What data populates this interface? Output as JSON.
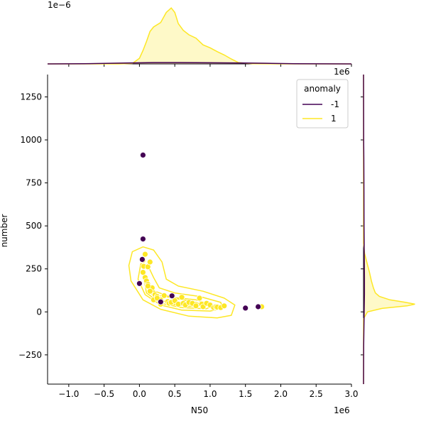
{
  "chart_data": {
    "type": "scatter",
    "subtype": "jointplot with kde contours and marginal kde",
    "xlabel": "N50",
    "ylabel": "number",
    "x_offset_label": "1e6",
    "top_marginal_offset_label": "1e−6",
    "right_marginal_offset_label": "1e6",
    "xlim": [
      -1.3,
      3.0
    ],
    "ylim": [
      -420,
      1380
    ],
    "x_scale": 1000000,
    "x_ticks": [
      -1.0,
      -0.5,
      0.0,
      0.5,
      1.0,
      1.5,
      2.0,
      2.5,
      3.0
    ],
    "x_tick_labels": [
      "−1.0",
      "−0.5",
      "0.0",
      "0.5",
      "1.0",
      "1.5",
      "2.0",
      "2.5",
      "3.0"
    ],
    "y_ticks": [
      -250,
      0,
      250,
      500,
      750,
      1000,
      1250
    ],
    "y_tick_labels": [
      "−250",
      "0",
      "250",
      "500",
      "750",
      "1000",
      "1250"
    ],
    "grid": false,
    "legend": {
      "title": "anomaly",
      "placement": "top-right",
      "entries": [
        {
          "label": "-1",
          "color": "#440154"
        },
        {
          "label": "1",
          "color": "#fde725"
        }
      ]
    },
    "series": [
      {
        "name": "-1",
        "color": "#440154",
        "x": [
          0.05,
          0.05,
          0.04,
          0.0,
          0.3,
          0.46,
          1.5,
          1.68
        ],
        "y": [
          912,
          424,
          305,
          165,
          58,
          93,
          22,
          30
        ]
      },
      {
        "name": "1",
        "color": "#fde725",
        "x": [
          0.08,
          0.05,
          0.06,
          0.12,
          0.15,
          0.05,
          0.08,
          0.1,
          0.12,
          0.18,
          0.2,
          0.22,
          0.25,
          0.28,
          0.3,
          0.35,
          0.4,
          0.42,
          0.45,
          0.5,
          0.55,
          0.6,
          0.62,
          0.65,
          0.7,
          0.75,
          0.8,
          0.85,
          0.88,
          0.9,
          0.95,
          1.0,
          1.05,
          1.08,
          1.1,
          1.15,
          1.2,
          0.2,
          0.25,
          0.3,
          0.12,
          0.15,
          1.73
        ],
        "y": [
          335,
          300,
          265,
          262,
          290,
          230,
          200,
          180,
          160,
          140,
          110,
          100,
          90,
          75,
          70,
          95,
          60,
          50,
          55,
          65,
          45,
          85,
          50,
          40,
          55,
          50,
          35,
          80,
          45,
          30,
          50,
          40,
          25,
          30,
          28,
          25,
          35,
          70,
          80,
          45,
          150,
          120,
          30
        ]
      }
    ],
    "contours": [
      {
        "series": "1",
        "level": 1,
        "points": [
          [
            -0.1,
            350
          ],
          [
            0.05,
            378
          ],
          [
            0.2,
            360
          ],
          [
            0.32,
            290
          ],
          [
            0.38,
            190
          ],
          [
            0.55,
            150
          ],
          [
            0.9,
            120
          ],
          [
            1.2,
            80
          ],
          [
            1.35,
            40
          ],
          [
            1.3,
            -20
          ],
          [
            1.1,
            -35
          ],
          [
            0.7,
            -25
          ],
          [
            0.3,
            15
          ],
          [
            0.05,
            70
          ],
          [
            -0.12,
            180
          ],
          [
            -0.15,
            270
          ],
          [
            -0.1,
            350
          ]
        ]
      },
      {
        "series": "1",
        "level": 2,
        "points": [
          [
            0.02,
            280
          ],
          [
            0.12,
            270
          ],
          [
            0.2,
            200
          ],
          [
            0.28,
            140
          ],
          [
            0.5,
            110
          ],
          [
            0.85,
            90
          ],
          [
            1.15,
            55
          ],
          [
            1.18,
            20
          ],
          [
            1.0,
            5
          ],
          [
            0.6,
            10
          ],
          [
            0.3,
            40
          ],
          [
            0.08,
            100
          ],
          [
            -0.02,
            190
          ],
          [
            0.02,
            280
          ]
        ]
      },
      {
        "series": "1",
        "level": 3,
        "points": [
          [
            0.06,
            200
          ],
          [
            0.12,
            170
          ],
          [
            0.22,
            120
          ],
          [
            0.45,
            85
          ],
          [
            0.8,
            70
          ],
          [
            1.05,
            40
          ],
          [
            0.95,
            18
          ],
          [
            0.6,
            25
          ],
          [
            0.3,
            50
          ],
          [
            0.1,
            110
          ],
          [
            0.06,
            200
          ]
        ]
      },
      {
        "series": "1",
        "level": 4,
        "points": [
          [
            0.3,
            95
          ],
          [
            0.55,
            75
          ],
          [
            0.8,
            55
          ],
          [
            0.9,
            38
          ],
          [
            0.7,
            32
          ],
          [
            0.45,
            45
          ],
          [
            0.3,
            70
          ],
          [
            0.3,
            95
          ]
        ]
      },
      {
        "series": "1",
        "level": 5,
        "points": [
          [
            0.42,
            65
          ],
          [
            0.6,
            55
          ],
          [
            0.72,
            45
          ],
          [
            0.6,
            40
          ],
          [
            0.45,
            48
          ],
          [
            0.42,
            65
          ]
        ]
      }
    ],
    "top_marginal": {
      "series": [
        {
          "name": "1",
          "color": "#fde725",
          "x": [
            -1.3,
            -0.3,
            -0.1,
            0.0,
            0.05,
            0.1,
            0.15,
            0.2,
            0.3,
            0.38,
            0.45,
            0.5,
            0.55,
            0.62,
            0.7,
            0.8,
            0.9,
            1.0,
            1.1,
            1.2,
            1.3,
            1.4,
            1.6,
            2.0,
            3.0
          ],
          "y": [
            0.0,
            0.0,
            0.02,
            0.25,
            0.6,
            1.0,
            1.45,
            1.65,
            1.85,
            2.3,
            2.5,
            2.3,
            1.8,
            1.5,
            1.3,
            1.15,
            0.85,
            0.72,
            0.55,
            0.4,
            0.22,
            0.06,
            0.01,
            0.0,
            0.0
          ]
        },
        {
          "name": "-1",
          "color": "#440154",
          "x": [
            -1.3,
            -0.8,
            -0.2,
            0.2,
            0.5,
            1.0,
            1.5,
            1.8,
            2.2,
            3.0
          ],
          "y": [
            0.0,
            0.005,
            0.04,
            0.06,
            0.06,
            0.05,
            0.04,
            0.03,
            0.005,
            0.0
          ]
        }
      ]
    },
    "right_marginal": {
      "series": [
        {
          "name": "1",
          "color": "#fde725",
          "y": [
            -420,
            -40,
            0,
            20,
            35,
            45,
            55,
            70,
            90,
            110,
            140,
            180,
            230,
            290,
            340,
            400,
            1380
          ],
          "x": [
            0.0,
            0.0,
            0.3,
            1.4,
            3.3,
            3.9,
            3.2,
            2.0,
            1.2,
            0.9,
            0.75,
            0.6,
            0.45,
            0.25,
            0.08,
            0.0,
            0.0
          ]
        },
        {
          "name": "-1",
          "color": "#440154",
          "y": [
            -420,
            -200,
            0,
            100,
            200,
            300,
            400,
            500,
            700,
            900,
            1000,
            1380
          ],
          "x": [
            0.0,
            0.01,
            0.05,
            0.07,
            0.07,
            0.06,
            0.05,
            0.04,
            0.03,
            0.02,
            0.01,
            0.0
          ]
        }
      ]
    }
  }
}
